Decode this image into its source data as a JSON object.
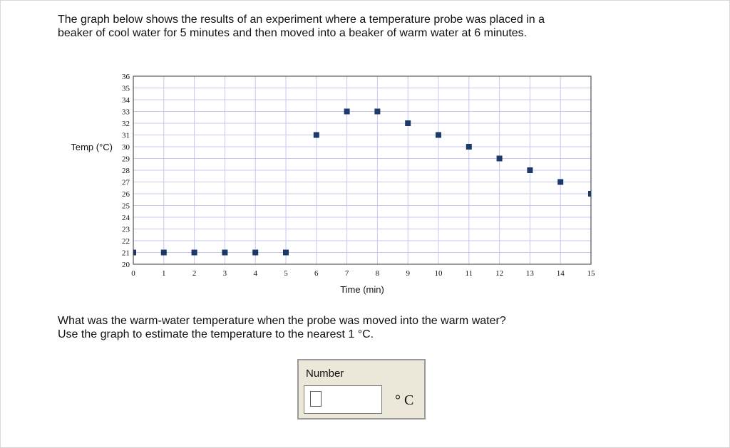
{
  "intro": {
    "line1": "The graph below shows the results of an experiment where a temperature probe was placed in a",
    "line2": "beaker of cool water for 5 minutes and then moved into a beaker of warm water at 6 minutes."
  },
  "chart_data": {
    "type": "scatter",
    "title": "",
    "xlabel": "Time (min)",
    "ylabel": "Temp (°C)",
    "xlim": [
      0,
      15
    ],
    "ylim": [
      20,
      36
    ],
    "x_ticks": [
      0,
      1,
      2,
      3,
      4,
      5,
      6,
      7,
      8,
      9,
      10,
      11,
      12,
      13,
      14,
      15
    ],
    "y_ticks": [
      20,
      21,
      22,
      23,
      24,
      25,
      26,
      27,
      28,
      29,
      30,
      31,
      32,
      33,
      34,
      35,
      36
    ],
    "grid": true,
    "marker_color": "#1b3a6b",
    "grid_color": "#c8c8ee",
    "series": [
      {
        "x": [
          0,
          1,
          2,
          3,
          4,
          5,
          6,
          7,
          8,
          9,
          10,
          11,
          12,
          13,
          14,
          15
        ],
        "y": [
          21,
          21,
          21,
          21,
          21,
          21,
          31,
          33,
          33,
          32,
          31,
          30,
          29,
          28,
          27,
          26
        ]
      }
    ]
  },
  "question": {
    "line1": "What was the warm-water temperature when the probe was moved into the warm water?",
    "line2": "Use the graph to estimate the temperature to the nearest 1 °C."
  },
  "answer": {
    "label": "Number",
    "value": "",
    "unit": "° C"
  }
}
